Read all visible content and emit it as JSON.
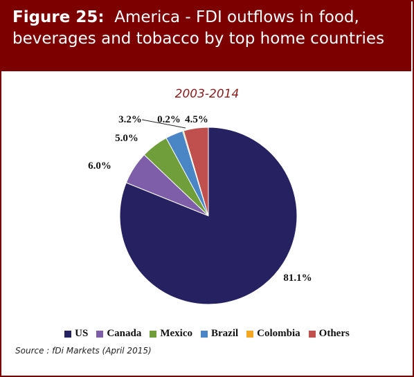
{
  "figure": {
    "label": "Figure 25:",
    "title_line1": "America - FDI outflows in food,",
    "title_line2": "beverages and tobacco by top home countries"
  },
  "chart_data": {
    "type": "pie",
    "subtitle": "2003-2014",
    "categories": [
      "US",
      "Canada",
      "Mexico",
      "Brazil",
      "Colombia",
      "Others"
    ],
    "values": [
      81.1,
      6.0,
      5.0,
      3.2,
      0.2,
      4.5
    ],
    "labels": [
      "81.1%",
      "6.0%",
      "5.0%",
      "3.2%",
      "0.2%",
      "4.5%"
    ],
    "colors": [
      "#262262",
      "#7e5ea8",
      "#6f9e3a",
      "#4a86c5",
      "#f5a623",
      "#c0504d"
    ],
    "legend_position": "bottom"
  },
  "source": "Source : fDi Markets (April 2015)"
}
